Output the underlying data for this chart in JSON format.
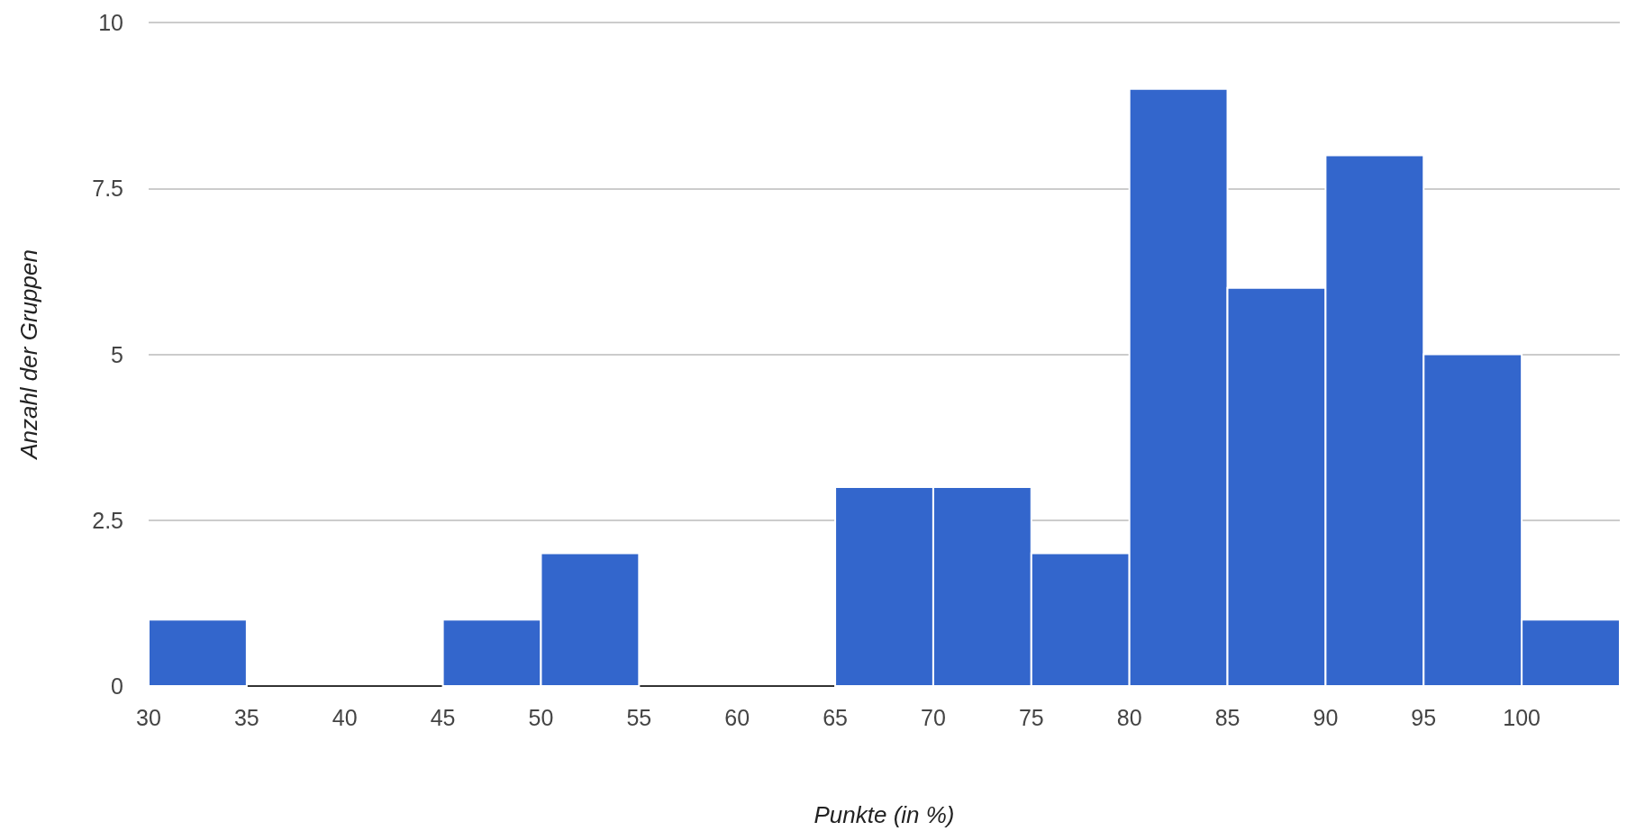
{
  "chart_data": {
    "type": "histogram",
    "xlabel": "Punkte (in %)",
    "ylabel": "Anzahl der Gruppen",
    "bins": [
      30,
      35,
      40,
      45,
      50,
      55,
      60,
      65,
      70,
      75,
      80,
      85,
      90,
      95,
      100,
      105
    ],
    "values": [
      1,
      0,
      0,
      1,
      2,
      0,
      0,
      3,
      3,
      2,
      9,
      6,
      8,
      5,
      1
    ],
    "color": "#3366cc",
    "xlim": [
      30,
      105
    ],
    "xticks": [
      30,
      35,
      40,
      45,
      50,
      55,
      60,
      65,
      70,
      75,
      80,
      85,
      90,
      95,
      100
    ],
    "ylim": [
      0,
      10
    ],
    "yticks": [
      0,
      2.5,
      5,
      7.5,
      10
    ],
    "grid": "y"
  }
}
